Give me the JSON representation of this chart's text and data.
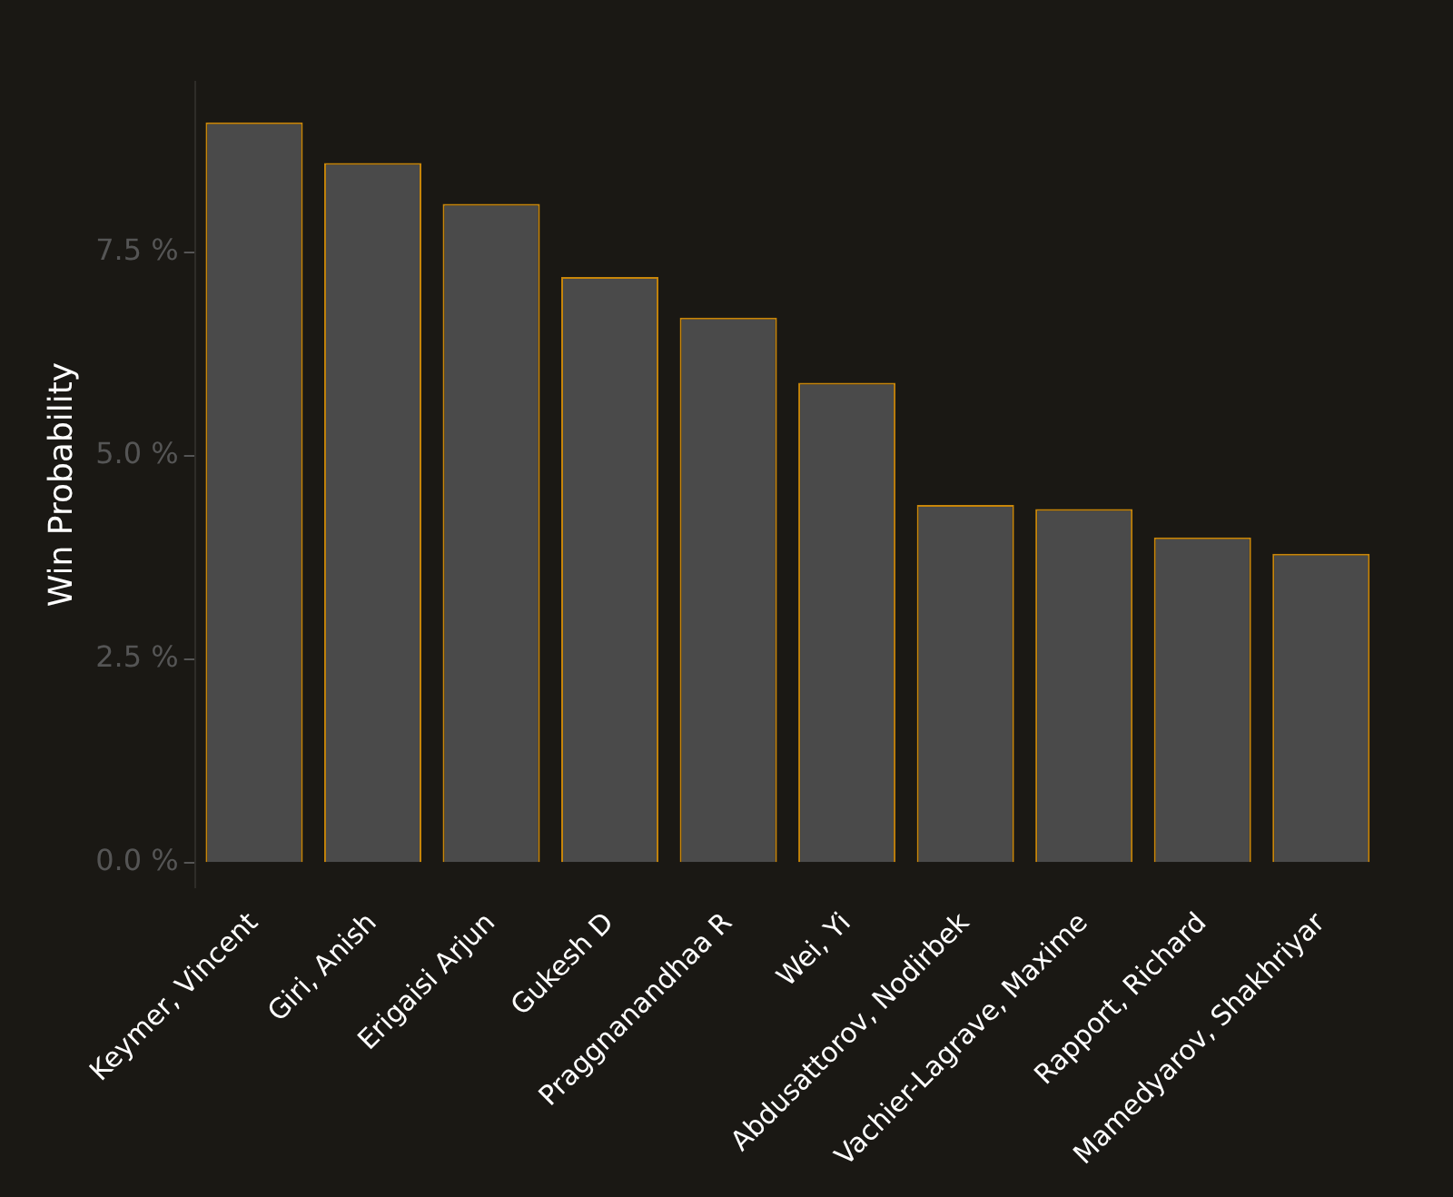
{
  "chart_data": {
    "type": "bar",
    "ylabel": "Win Probability",
    "categories": [
      "Keymer, Vincent",
      "Giri, Anish",
      "Erigaisi Arjun",
      "Gukesh D",
      "Praggnanandhaa R",
      "Wei, Yi",
      "Abdusattorov, Nodirbek",
      "Vachier-Lagrave, Maxime",
      "Rapport, Richard",
      "Mamedyarov, Shakhriyar"
    ],
    "series": [
      {
        "color": "#4a4a4a",
        "values": [
          9.1,
          8.6,
          8.1,
          7.2,
          6.7,
          5.9,
          4.4,
          4.35,
          4.0,
          3.8
        ]
      }
    ],
    "ylim": [
      -0.3,
      9.6
    ],
    "yticks": [
      {
        "value": 0,
        "label": "0.0 %"
      },
      {
        "value": 2.5,
        "label": "2.5 %"
      },
      {
        "value": 5,
        "label": "5.0 %"
      },
      {
        "value": 7.5,
        "label": "7.5 %"
      }
    ],
    "grid": false,
    "legend": false
  }
}
